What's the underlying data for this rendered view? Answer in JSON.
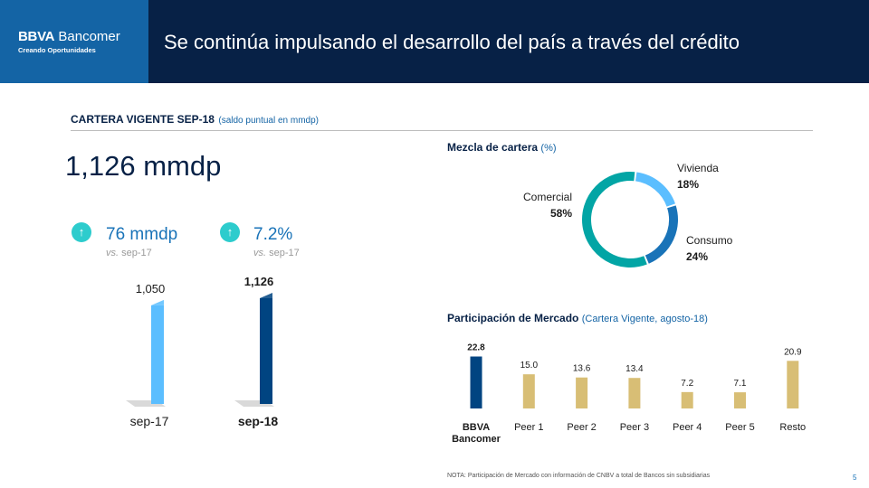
{
  "header": {
    "logo_name_bold": "BBVA",
    "logo_name": "Bancomer",
    "logo_tagline": "Creando Oportunidades",
    "title": "Se continúa impulsando el desarrollo del país a través del crédito"
  },
  "section": {
    "title": "CARTERA VIGENTE SEP-18",
    "subtitle": "(saldo puntual en mmdp)"
  },
  "total": "1,126 mmdp",
  "kpis": [
    {
      "value": "76 mmdp",
      "sub_prefix": "vs.",
      "sub_period": "sep-17"
    },
    {
      "value": "7.2%",
      "sub_prefix": "vs.",
      "sub_period": "sep-17"
    }
  ],
  "colors": {
    "navy": "#072146",
    "blue": "#1464a5",
    "dark_bar": "#004481",
    "light_bar": "#5bbeff",
    "aqua": "#2dcccd",
    "teal": "#02a5a5",
    "gold": "#d8be75"
  },
  "chart_data": [
    {
      "type": "bar",
      "title": "",
      "categories": [
        "sep-17",
        "sep-18"
      ],
      "values": [
        1050,
        1126
      ],
      "value_labels": [
        "1,050",
        "1,126"
      ],
      "ylim": [
        0,
        1150
      ],
      "colors": [
        "#5bbeff",
        "#004481"
      ]
    },
    {
      "type": "pie",
      "title": "Mezcla de cartera",
      "subtitle": "(%)",
      "slices": [
        {
          "name": "Vivienda",
          "value": 18,
          "label": "18%",
          "color": "#5bbeff"
        },
        {
          "name": "Consumo",
          "value": 24,
          "label": "24%",
          "color": "#1973b8"
        },
        {
          "name": "Comercial",
          "value": 58,
          "label": "58%",
          "color": "#02a5a5"
        }
      ]
    },
    {
      "type": "bar",
      "title": "Participación de Mercado",
      "subtitle": "(Cartera Vigente, agosto-18)",
      "categories": [
        "BBVA Bancomer",
        "Peer 1",
        "Peer 2",
        "Peer 3",
        "Peer 4",
        "Peer 5",
        "Resto"
      ],
      "category_lines": [
        [
          "BBVA",
          "Bancomer"
        ],
        [
          "Peer 1"
        ],
        [
          "Peer 2"
        ],
        [
          "Peer 3"
        ],
        [
          "Peer 4"
        ],
        [
          "Peer 5"
        ],
        [
          "Resto"
        ]
      ],
      "values": [
        22.8,
        15.0,
        13.6,
        13.4,
        7.2,
        7.1,
        20.9
      ],
      "value_labels": [
        "22.8",
        "15.0",
        "13.6",
        "13.4",
        "7.2",
        "7.1",
        "20.9"
      ],
      "ylim": [
        0,
        23
      ],
      "colors": [
        "#004481",
        "#d8be75",
        "#d8be75",
        "#d8be75",
        "#d8be75",
        "#d8be75",
        "#d8be75"
      ]
    }
  ],
  "note": "NOTA: Participación de Mercado con información de CNBV a total de Bancos sin subsidiarias",
  "page_number": "5"
}
